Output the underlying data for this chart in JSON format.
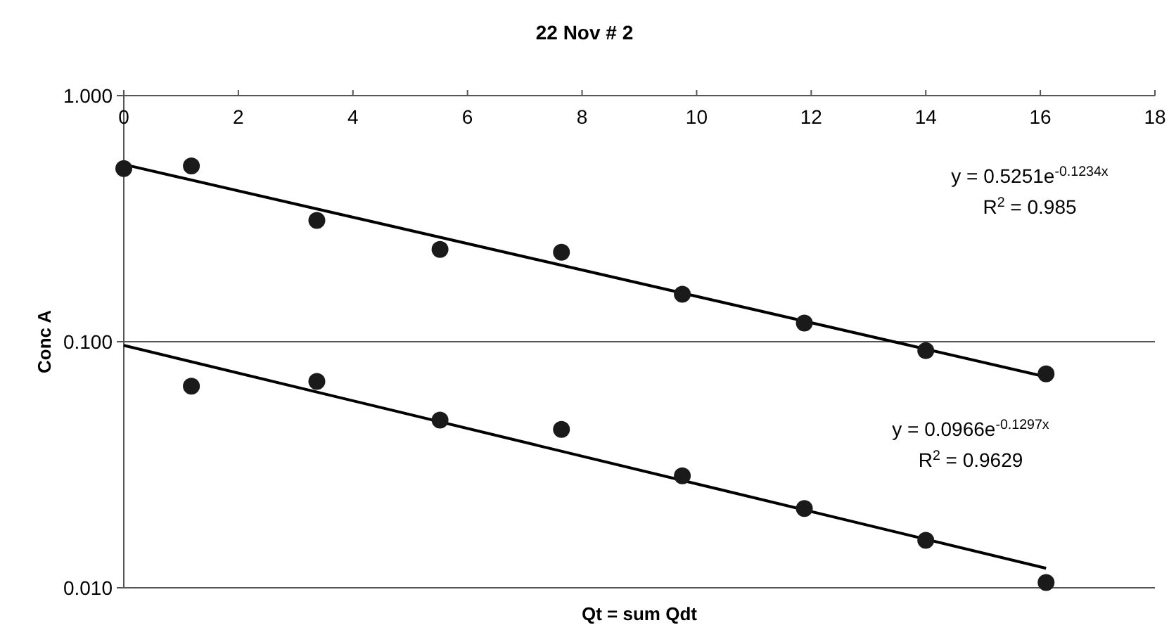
{
  "chart_data": {
    "type": "scatter",
    "title": "22 Nov # 2",
    "xlabel": "Qt = sum Qdt",
    "ylabel": "Conc A",
    "log": "y",
    "grid": "y",
    "xlim": [
      0,
      18
    ],
    "xticks": [
      0,
      2,
      4,
      6,
      8,
      10,
      12,
      14,
      16,
      18
    ],
    "ylim": [
      0.01,
      1
    ],
    "yticks": [
      {
        "value": 0.01,
        "label": "0.010"
      },
      {
        "value": 0.1,
        "label": "0.100"
      },
      {
        "value": 1,
        "label": "1.000"
      }
    ],
    "series": [
      {
        "color": "#1a1a1a",
        "marker": "circle",
        "x": [
          0,
          1.18,
          3.37,
          5.52,
          7.64,
          9.75,
          11.88,
          14.0,
          16.1
        ],
        "values": [
          0.505,
          0.518,
          0.311,
          0.237,
          0.231,
          0.156,
          0.119,
          0.092,
          0.074
        ]
      },
      {
        "color": "#1a1a1a",
        "marker": "circle",
        "x": [
          1.18,
          3.37,
          5.52,
          7.64,
          9.75,
          11.88,
          14.0,
          16.1
        ],
        "values": [
          0.066,
          0.069,
          0.048,
          0.044,
          0.0285,
          0.021,
          0.0156,
          0.0105
        ]
      },
      {
        "type": "line",
        "color": "#000000",
        "line_style": "solid",
        "x": [
          0,
          16.1
        ],
        "values": [
          0.5251,
          0.072
        ]
      },
      {
        "type": "line",
        "color": "#000000",
        "line_style": "solid",
        "x": [
          0,
          16.1
        ],
        "values": [
          0.0966,
          0.012
        ]
      }
    ],
    "annotations": [
      "y = 0.5251e$^{-0.1234x}$",
      "R$^{2}$ = 0.985",
      "y = 0.0966e$^{-0.1297x}$",
      "R$^{2}$ = 0.9629"
    ]
  }
}
